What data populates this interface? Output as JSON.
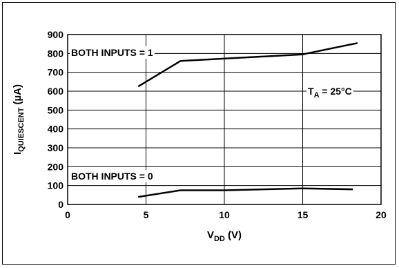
{
  "chart_data": {
    "type": "line",
    "xlim": [
      0,
      20
    ],
    "ylim": [
      0,
      900
    ],
    "x_ticks": [
      0,
      5,
      10,
      15,
      20
    ],
    "y_ticks": [
      0,
      100,
      200,
      300,
      400,
      500,
      600,
      700,
      800,
      900
    ],
    "grid": true,
    "xlabel": {
      "main": "V",
      "sub": "DD",
      "suffix": " (V)"
    },
    "ylabel": {
      "main": "I",
      "sub": "QUIESCENT",
      "suffix": " (µA)"
    },
    "condition": {
      "main": "T",
      "sub": "A",
      "suffix": " = 25°C"
    },
    "series": [
      {
        "name": "BOTH INPUTS = 1",
        "x": [
          4.5,
          7.2,
          15,
          18.5
        ],
        "y": [
          625,
          760,
          795,
          855
        ]
      },
      {
        "name": "BOTH INPUTS = 0",
        "x": [
          4.5,
          7.2,
          10,
          15,
          18.2
        ],
        "y": [
          40,
          75,
          75,
          85,
          80
        ]
      }
    ]
  }
}
